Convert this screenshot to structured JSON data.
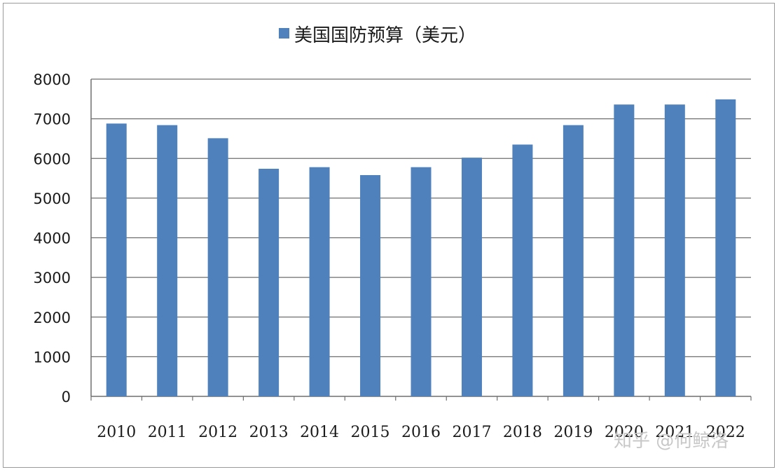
{
  "chart_data": {
    "type": "bar",
    "categories": [
      "2010",
      "2011",
      "2012",
      "2013",
      "2014",
      "2015",
      "2016",
      "2017",
      "2018",
      "2019",
      "2020",
      "2021",
      "2022"
    ],
    "series": [
      {
        "name": "美国国防预算（美元）",
        "values": [
          6880,
          6840,
          6510,
          5740,
          5780,
          5580,
          5780,
          6020,
          6350,
          6840,
          7360,
          7360,
          7490
        ],
        "color": "#4f81bd"
      }
    ],
    "ylim": [
      0,
      8000
    ],
    "yticks": [
      0,
      1000,
      2000,
      3000,
      4000,
      5000,
      6000,
      7000,
      8000
    ],
    "grid": true,
    "legend": "top-center"
  },
  "watermark": "知乎 @何鲸洛"
}
